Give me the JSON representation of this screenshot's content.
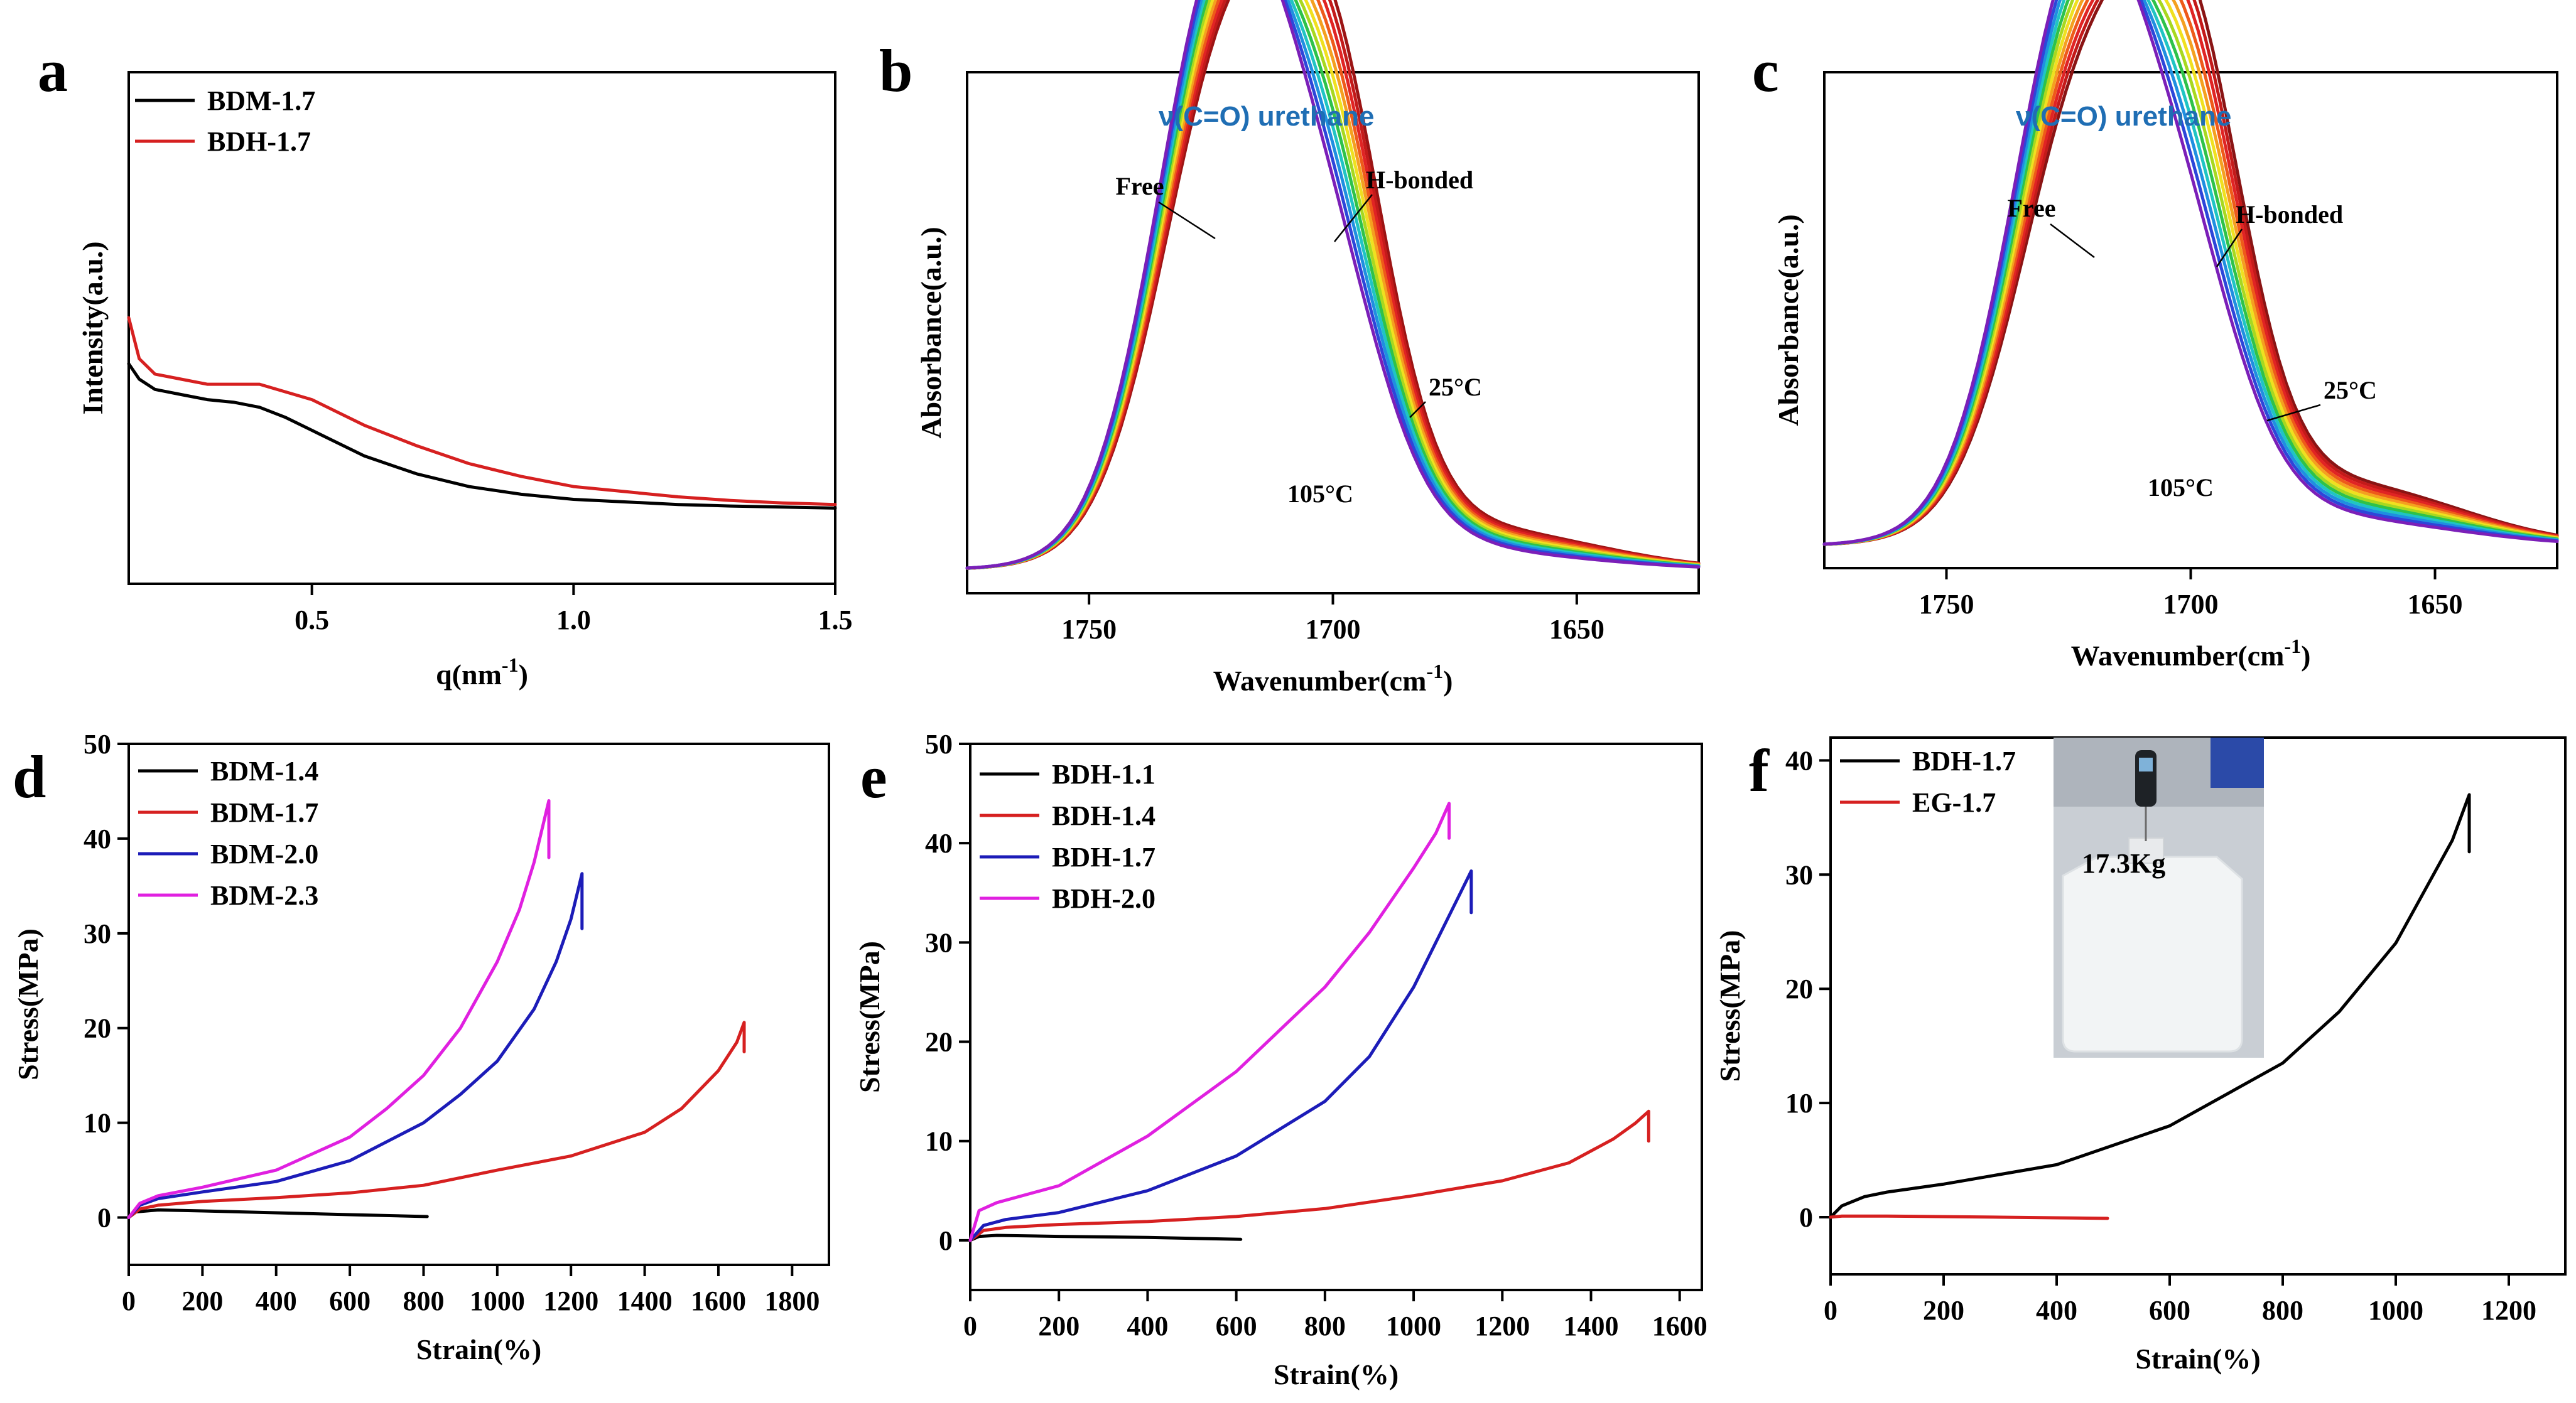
{
  "chart_data": [
    {
      "panel": "a",
      "type": "line",
      "xlabel": "q(nm",
      "xlabel_sup": "-1",
      "xlabel_end": ")",
      "ylabel": "Intensity(a.u.)",
      "xlim": [
        0.15,
        1.5
      ],
      "ylim": [
        0,
        1
      ],
      "xticks": [
        0.5,
        1.0,
        1.5
      ],
      "xtick_labels": [
        "0.5",
        "1.0",
        "1.5"
      ],
      "legend": "top-left",
      "series": [
        {
          "name": "BDM-1.7",
          "color": "#000000",
          "x": [
            0.15,
            0.17,
            0.2,
            0.25,
            0.3,
            0.35,
            0.4,
            0.45,
            0.5,
            0.55,
            0.6,
            0.7,
            0.8,
            0.9,
            1.0,
            1.1,
            1.2,
            1.3,
            1.4,
            1.5
          ],
          "y": [
            0.43,
            0.4,
            0.38,
            0.37,
            0.36,
            0.355,
            0.345,
            0.325,
            0.3,
            0.275,
            0.25,
            0.215,
            0.19,
            0.175,
            0.165,
            0.16,
            0.155,
            0.152,
            0.15,
            0.148
          ]
        },
        {
          "name": "BDH-1.7",
          "color": "#d62020",
          "x": [
            0.15,
            0.17,
            0.2,
            0.25,
            0.3,
            0.35,
            0.4,
            0.45,
            0.5,
            0.55,
            0.6,
            0.7,
            0.8,
            0.9,
            1.0,
            1.1,
            1.2,
            1.3,
            1.4,
            1.5
          ],
          "y": [
            0.52,
            0.44,
            0.41,
            0.4,
            0.39,
            0.39,
            0.39,
            0.375,
            0.36,
            0.335,
            0.31,
            0.27,
            0.235,
            0.21,
            0.19,
            0.18,
            0.17,
            0.163,
            0.158,
            0.155
          ]
        }
      ]
    },
    {
      "panel": "b",
      "type": "line",
      "xlabel": "Wavenumber(cm",
      "xlabel_sup": "-1",
      "xlabel_end": ")",
      "ylabel": "Absorbance(a.u.)",
      "xlim": [
        1775,
        1625
      ],
      "ylim": [
        0,
        1.1
      ],
      "xticks": [
        1750,
        1700,
        1650
      ],
      "xtick_labels": [
        "1750",
        "1700",
        "1650"
      ],
      "title_note": "ν(C=O) urethane",
      "annotations": [
        "Free",
        "H-bonded",
        "25°C",
        "105°C"
      ],
      "temperature_colors": [
        "#7b1fb8",
        "#2d46d9",
        "#1f8fe0",
        "#20c4c4",
        "#2ec24a",
        "#a8d820",
        "#f0e020",
        "#f4a020",
        "#ee5a1a",
        "#e02424",
        "#c41a1a",
        "#9c1414"
      ]
    },
    {
      "panel": "c",
      "type": "line",
      "xlabel": "Wavenumber(cm",
      "xlabel_sup": "-1",
      "xlabel_end": ")",
      "ylabel": "Absorbance(a.u.)",
      "xlim": [
        1775,
        1625
      ],
      "ylim": [
        0,
        1.1
      ],
      "xticks": [
        1750,
        1700,
        1650
      ],
      "xtick_labels": [
        "1750",
        "1700",
        "1650"
      ],
      "title_note": "ν(C=O) urethane",
      "annotations": [
        "Free",
        "H-bonded",
        "25°C",
        "105°C"
      ],
      "temperature_colors": [
        "#7b1fb8",
        "#2d46d9",
        "#1f8fe0",
        "#20c4c4",
        "#2ec24a",
        "#a8d820",
        "#f0e020",
        "#f4a020",
        "#ee5a1a",
        "#e02424",
        "#c41a1a",
        "#8a1414"
      ]
    },
    {
      "panel": "d",
      "type": "line",
      "xlabel": "Strain(%)",
      "ylabel": "Stress(MPa)",
      "xlim": [
        0,
        1900
      ],
      "ylim": [
        -5,
        50
      ],
      "xticks": [
        0,
        200,
        400,
        600,
        800,
        1000,
        1200,
        1400,
        1600,
        1800
      ],
      "yticks": [
        0,
        10,
        20,
        30,
        40,
        50
      ],
      "legend": "top-left",
      "series": [
        {
          "name": "BDM-1.4",
          "color": "#000000",
          "x": [
            0,
            20,
            80,
            200,
            400,
            600,
            810
          ],
          "y": [
            0,
            0.6,
            0.8,
            0.7,
            0.5,
            0.3,
            0.1
          ]
        },
        {
          "name": "BDM-1.7",
          "color": "#d62020",
          "x": [
            0,
            30,
            80,
            200,
            400,
            600,
            800,
            1000,
            1200,
            1400,
            1500,
            1600,
            1650,
            1670,
            1670
          ],
          "y": [
            0,
            0.9,
            1.3,
            1.7,
            2.1,
            2.6,
            3.4,
            5.0,
            6.5,
            9.0,
            11.5,
            15.5,
            18.5,
            20.6,
            17.5
          ]
        },
        {
          "name": "BDM-2.0",
          "color": "#1c1cb8",
          "x": [
            0,
            30,
            80,
            200,
            400,
            600,
            800,
            900,
            1000,
            1100,
            1160,
            1200,
            1230,
            1230
          ],
          "y": [
            0,
            1.3,
            2.0,
            2.7,
            3.8,
            6.0,
            10.0,
            13.0,
            16.5,
            22.0,
            27.0,
            31.5,
            36.3,
            30.5
          ]
        },
        {
          "name": "BDM-2.3",
          "color": "#e020e0",
          "x": [
            0,
            30,
            80,
            200,
            400,
            600,
            700,
            800,
            900,
            1000,
            1060,
            1100,
            1140,
            1140
          ],
          "y": [
            0,
            1.5,
            2.3,
            3.2,
            5.0,
            8.5,
            11.5,
            15.0,
            20.0,
            27.0,
            32.5,
            37.5,
            44.0,
            38.0
          ]
        }
      ]
    },
    {
      "panel": "e",
      "type": "line",
      "xlabel": "Strain(%)",
      "ylabel": "Stress(MPa)",
      "xlim": [
        0,
        1650
      ],
      "ylim": [
        -5,
        50
      ],
      "xticks": [
        0,
        200,
        400,
        600,
        800,
        1000,
        1200,
        1400,
        1600
      ],
      "yticks": [
        0,
        10,
        20,
        30,
        40,
        50
      ],
      "legend": "top-left",
      "series": [
        {
          "name": "BDH-1.1",
          "color": "#000000",
          "x": [
            0,
            20,
            60,
            200,
            400,
            610
          ],
          "y": [
            0,
            0.4,
            0.5,
            0.4,
            0.3,
            0.1
          ]
        },
        {
          "name": "BDH-1.4",
          "color": "#d62020",
          "x": [
            0,
            30,
            80,
            200,
            400,
            600,
            800,
            1000,
            1200,
            1350,
            1450,
            1500,
            1530,
            1530
          ],
          "y": [
            0,
            1.0,
            1.3,
            1.6,
            1.9,
            2.4,
            3.2,
            4.5,
            6.0,
            7.8,
            10.2,
            11.8,
            13.0,
            10.0
          ]
        },
        {
          "name": "BDH-1.7",
          "color": "#1c1cb8",
          "x": [
            0,
            30,
            80,
            200,
            400,
            600,
            800,
            900,
            1000,
            1050,
            1100,
            1130,
            1130
          ],
          "y": [
            0,
            1.5,
            2.1,
            2.8,
            5.0,
            8.5,
            14.0,
            18.5,
            25.5,
            30.0,
            34.5,
            37.2,
            33.0
          ]
        },
        {
          "name": "BDH-2.0",
          "color": "#e020e0",
          "x": [
            0,
            20,
            60,
            200,
            400,
            600,
            800,
            900,
            1000,
            1050,
            1080,
            1080
          ],
          "y": [
            0,
            3.0,
            3.8,
            5.5,
            10.5,
            17.0,
            25.5,
            31.0,
            37.5,
            41.0,
            44.0,
            40.5
          ]
        }
      ]
    },
    {
      "panel": "f",
      "type": "line",
      "xlabel": "Strain(%)",
      "ylabel": "Stress(MPa)",
      "xlim": [
        0,
        1300
      ],
      "ylim": [
        -5,
        42
      ],
      "xticks": [
        0,
        200,
        400,
        600,
        800,
        1000,
        1200
      ],
      "yticks": [
        0,
        10,
        20,
        30,
        40
      ],
      "legend": "top-left",
      "inset_text": "17.3Kg",
      "series": [
        {
          "name": "BDH-1.7",
          "color": "#000000",
          "x": [
            0,
            20,
            60,
            100,
            200,
            400,
            600,
            800,
            900,
            1000,
            1050,
            1100,
            1130,
            1130
          ],
          "y": [
            0,
            1.0,
            1.8,
            2.2,
            2.9,
            4.6,
            8.0,
            13.5,
            18.0,
            24.0,
            28.5,
            33.0,
            37.0,
            32.0
          ]
        },
        {
          "name": "EG-1.7",
          "color": "#d62020",
          "x": [
            0,
            20,
            100,
            200,
            300,
            400,
            490
          ],
          "y": [
            0,
            0.1,
            0.1,
            0.05,
            0.0,
            -0.05,
            -0.1
          ]
        }
      ]
    }
  ]
}
